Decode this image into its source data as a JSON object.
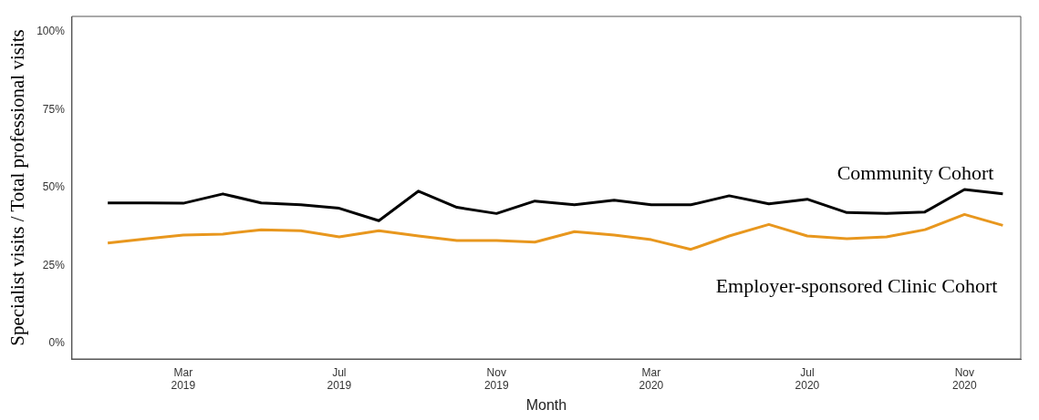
{
  "chart_data": {
    "type": "line",
    "xlabel": "Month",
    "ylabel": "Specialist visits / Total professional visits",
    "x": [
      "2019-01",
      "2019-02",
      "2019-03",
      "2019-04",
      "2019-05",
      "2019-06",
      "2019-07",
      "2019-08",
      "2019-09",
      "2019-10",
      "2019-11",
      "2019-12",
      "2020-01",
      "2020-02",
      "2020-03",
      "2020-04",
      "2020-05",
      "2020-06",
      "2020-07",
      "2020-08",
      "2020-09",
      "2020-10",
      "2020-11",
      "2020-12"
    ],
    "series": [
      {
        "name": "Community Cohort",
        "color": "#000000",
        "values": [
          45.1,
          45.1,
          45.0,
          48.0,
          45.1,
          44.5,
          43.4,
          39.4,
          48.9,
          43.7,
          41.7,
          45.7,
          44.5,
          46.0,
          44.5,
          44.5,
          47.4,
          44.8,
          46.3,
          42.0,
          41.7,
          42.2,
          49.4,
          48.0
        ]
      },
      {
        "name": "Employer-sponsored Clinic Cohort",
        "color": "#e8971e",
        "values": [
          32.2,
          33.6,
          34.8,
          35.1,
          36.5,
          36.2,
          34.2,
          36.2,
          34.5,
          33.0,
          33.0,
          32.5,
          35.9,
          34.8,
          33.3,
          30.2,
          34.5,
          38.2,
          34.5,
          33.6,
          34.2,
          36.5,
          41.4,
          37.9
        ]
      }
    ],
    "xlim": [
      "2018-12-04",
      "2020-12-15"
    ],
    "xticks": [
      {
        "value": "2019-03",
        "label": "Mar 2019"
      },
      {
        "value": "2019-07",
        "label": "Jul 2019"
      },
      {
        "value": "2019-11",
        "label": "Nov 2019"
      },
      {
        "value": "2020-03",
        "label": "Mar 2020"
      },
      {
        "value": "2020-07",
        "label": "Jul 2020"
      },
      {
        "value": "2020-11",
        "label": "Nov 2020"
      }
    ],
    "ylim": [
      -5,
      105
    ],
    "yticks": [
      {
        "value": 0,
        "label": "0%"
      },
      {
        "value": 25,
        "label": "25%"
      },
      {
        "value": 50,
        "label": "50%"
      },
      {
        "value": 75,
        "label": "75%"
      },
      {
        "value": 100,
        "label": "100%"
      }
    ],
    "grid": false,
    "legend": false,
    "marker": "none",
    "line_style": "solid"
  }
}
